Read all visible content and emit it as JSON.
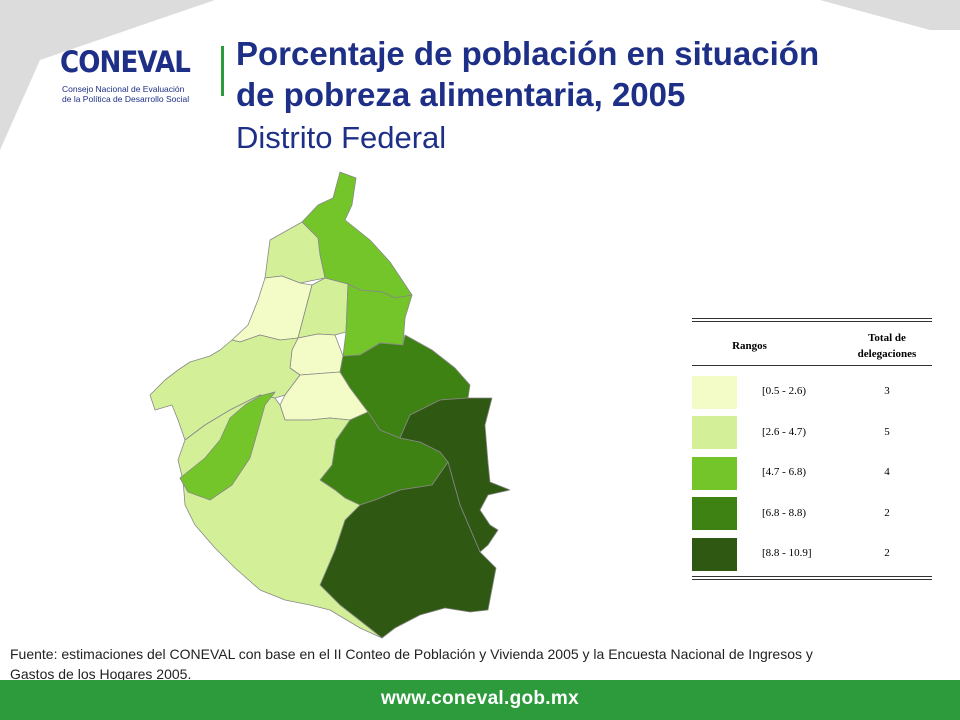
{
  "header": {
    "logo_word": "CONEVAL",
    "logo_sub_1": "Consejo Nacional de Evaluación",
    "logo_sub_2": "de la Política de Desarrollo Social",
    "title_line1": "Porcentaje de población en situación",
    "title_line2": "de pobreza alimentaria, 2005",
    "subtitle": "Distrito Federal"
  },
  "legend": {
    "col_range": "Rangos",
    "col_total_1": "Total de",
    "col_total_2": "delegaciones",
    "rows": [
      {
        "range": "[0.5 - 2.6)",
        "count": "3",
        "color": "#f3fbc7"
      },
      {
        "range": "[2.6 - 4.7)",
        "count": "5",
        "color": "#d3f099"
      },
      {
        "range": "[4.7 - 6.8)",
        "count": "4",
        "color": "#74c529"
      },
      {
        "range": "[6.8 - 8.8)",
        "count": "2",
        "color": "#3f8214"
      },
      {
        "range": "[8.8 - 10.9]",
        "count": "2",
        "color": "#2f5912"
      }
    ]
  },
  "source": {
    "line1": "Fuente: estimaciones del CONEVAL con base en el II Conteo de Población y Vivienda 2005 y la Encuesta Nacional de Ingresos y",
    "line2": "Gastos de los Hogares 2005."
  },
  "footer": {
    "url": "www.coneval.gob.mx"
  },
  "colors": {
    "brand_blue": "#1d2f86",
    "brand_green": "#2d9b3c",
    "corner_gray": "#dcdcdc"
  }
}
